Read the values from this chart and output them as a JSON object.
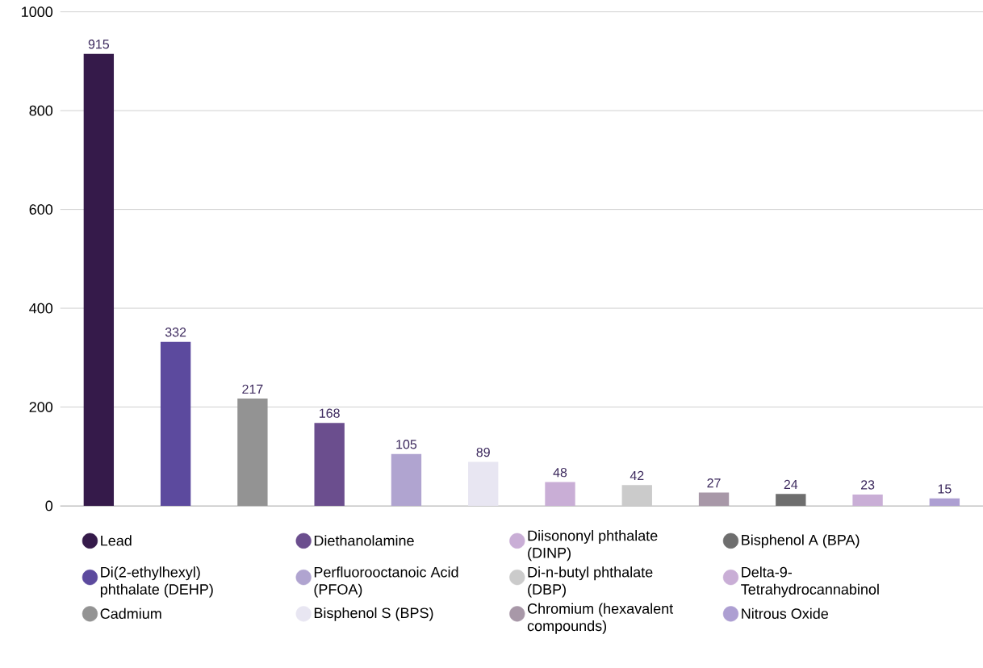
{
  "chart_data": {
    "type": "bar",
    "categories": [
      null,
      null,
      null,
      null,
      null,
      null,
      null,
      null,
      null,
      null,
      null,
      null
    ],
    "series": [
      {
        "name": "Lead",
        "color": "#351a4a",
        "values": [
          915,
          null,
          null,
          null,
          null,
          null,
          null,
          null,
          null,
          null,
          null,
          null
        ]
      },
      {
        "name": "Di(2-ethylhexyl) phthalate (DEHP)",
        "color": "#5c4a9e",
        "values": [
          null,
          332,
          null,
          null,
          null,
          null,
          null,
          null,
          null,
          null,
          null,
          null
        ]
      },
      {
        "name": "Cadmium",
        "color": "#939393",
        "values": [
          null,
          null,
          217,
          null,
          null,
          null,
          null,
          null,
          null,
          null,
          null,
          null
        ]
      },
      {
        "name": "Diethanolamine",
        "color": "#6b4e8e",
        "values": [
          null,
          null,
          null,
          168,
          null,
          null,
          null,
          null,
          null,
          null,
          null,
          null
        ]
      },
      {
        "name": "Perfluorooctanoic Acid (PFOA)",
        "color": "#b0a4d0",
        "values": [
          null,
          null,
          null,
          null,
          105,
          null,
          null,
          null,
          null,
          null,
          null,
          null
        ]
      },
      {
        "name": "Bisphenol S (BPS)",
        "color": "#e8e6f2",
        "values": [
          null,
          null,
          null,
          null,
          null,
          89,
          null,
          null,
          null,
          null,
          null,
          null
        ]
      },
      {
        "name": "Diisononyl phthalate (DINP)",
        "color": "#c9aed6",
        "values": [
          null,
          null,
          null,
          null,
          null,
          null,
          48,
          null,
          null,
          null,
          null,
          null
        ]
      },
      {
        "name": "Di-n-butyl phthalate (DBP)",
        "color": "#cbcbcb",
        "values": [
          null,
          null,
          null,
          null,
          null,
          null,
          null,
          42,
          null,
          null,
          null,
          null
        ]
      },
      {
        "name": "Chromium (hexavalent compounds)",
        "color": "#a898a8",
        "values": [
          null,
          null,
          null,
          null,
          null,
          null,
          null,
          null,
          27,
          null,
          null,
          null
        ]
      },
      {
        "name": "Bisphenol A (BPA)",
        "color": "#6e6e6e",
        "values": [
          null,
          null,
          null,
          null,
          null,
          null,
          null,
          null,
          null,
          24,
          null,
          null
        ]
      },
      {
        "name": "Delta-9-Tetrahydrocannabinol",
        "color": "#c9aed6",
        "values": [
          null,
          null,
          null,
          null,
          null,
          null,
          null,
          null,
          null,
          null,
          23,
          null
        ]
      },
      {
        "name": "Nitrous Oxide",
        "color": "#ad9fd2",
        "values": [
          null,
          null,
          null,
          null,
          null,
          null,
          null,
          null,
          null,
          null,
          null,
          15
        ]
      }
    ],
    "ylim": [
      0,
      1000
    ],
    "yticks": [
      0,
      200,
      400,
      600,
      800,
      1000
    ],
    "grid": "y",
    "legend": "bottom",
    "tick_labels": "y",
    "data_labels": true
  }
}
